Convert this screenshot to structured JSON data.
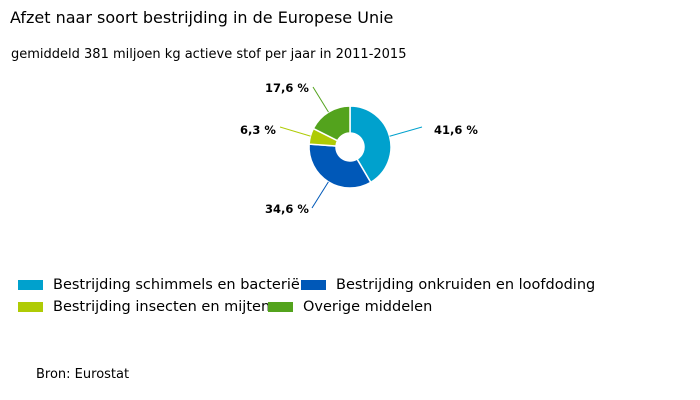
{
  "chart_data": {
    "type": "pie",
    "title": "Afzet naar soort bestrijding in de Europese Unie",
    "subtitle": "gemiddeld 381 miljoen kg actieve stof per jaar in 2011-2015",
    "slices": [
      {
        "name": "Bestrijding schimmels en bacteriën",
        "value": 41.6,
        "label": "41,6 %",
        "color": "#00a1cd"
      },
      {
        "name": "Bestrijding onkruiden en loofdoding",
        "value": 34.6,
        "label": "34,6 %",
        "color": "#0058b8"
      },
      {
        "name": "Bestrijding insecten en mijten",
        "value": 6.3,
        "label": "6,3 %",
        "color": "#afcb05"
      },
      {
        "name": "Overige middelen",
        "value": 17.6,
        "label": "17,6 %",
        "color": "#53a31d"
      }
    ],
    "source": "Bron: Eurostat",
    "donut": true
  }
}
